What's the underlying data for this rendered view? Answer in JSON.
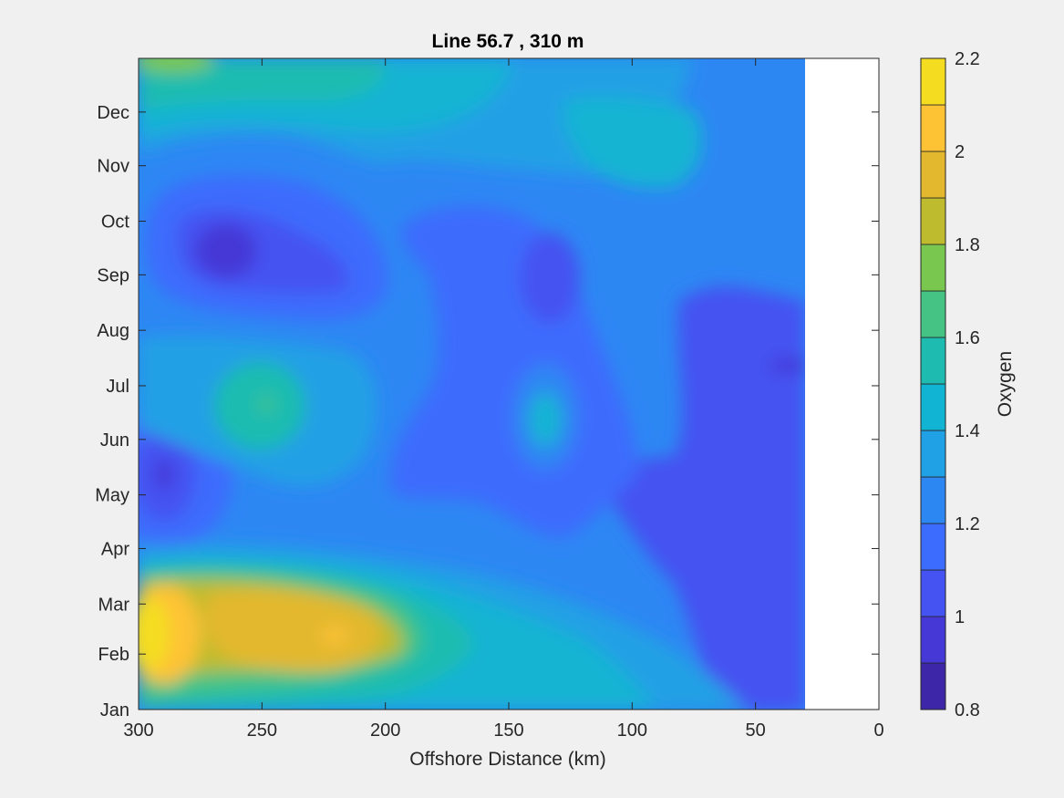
{
  "chart_data": {
    "type": "contour",
    "title": "Line 56.7 , 310 m",
    "xlabel": "Offshore Distance (km)",
    "colorbar_label": "Oxygen",
    "xlim": [
      300,
      0
    ],
    "x_ticks": [
      300,
      250,
      200,
      150,
      100,
      50,
      0
    ],
    "y_ticks": [
      "Jan",
      "Feb",
      "Mar",
      "Apr",
      "May",
      "Jun",
      "Jul",
      "Aug",
      "Sep",
      "Oct",
      "Nov",
      "Dec"
    ],
    "y_tick_days": [
      1,
      32,
      60,
      91,
      121,
      152,
      182,
      213,
      244,
      274,
      305,
      335
    ],
    "ylim_days": [
      1,
      365
    ],
    "data_extent_x": [
      300,
      30
    ],
    "colorbar": {
      "range": [
        0.8,
        2.2
      ],
      "step": 0.1,
      "ticks": [
        "0.8",
        "1",
        "1.2",
        "1.4",
        "1.6",
        "1.8",
        "2",
        "2.2"
      ],
      "colors": [
        "#3e26a8",
        "#4538d7",
        "#4453f1",
        "#3c6cfd",
        "#2d87f3",
        "#20a0e5",
        "#12b4d3",
        "#1ebcb0",
        "#45c384",
        "#7ac750",
        "#bebb2e",
        "#e3b82e",
        "#fec235",
        "#f4dd21"
      ]
    },
    "grid": false,
    "features": [
      {
        "name": "low center",
        "x": 262,
        "day": 262,
        "value": 0.9
      },
      {
        "name": "low center",
        "x": 292,
        "day": 137,
        "value": 0.9
      },
      {
        "name": "low center",
        "x": 132,
        "day": 240,
        "value": 1.1
      },
      {
        "name": "low region",
        "x": 60,
        "day": 180,
        "value": 1.0
      },
      {
        "name": "high center",
        "x": 295,
        "day": 45,
        "value": 2.15
      },
      {
        "name": "high center",
        "x": 240,
        "day": 55,
        "value": 2.0
      },
      {
        "name": "local high",
        "x": 250,
        "day": 167,
        "value": 1.7
      },
      {
        "name": "local high",
        "x": 133,
        "day": 160,
        "value": 1.55
      },
      {
        "name": "high band",
        "x": 250,
        "day": 355,
        "value": 1.7
      }
    ]
  }
}
